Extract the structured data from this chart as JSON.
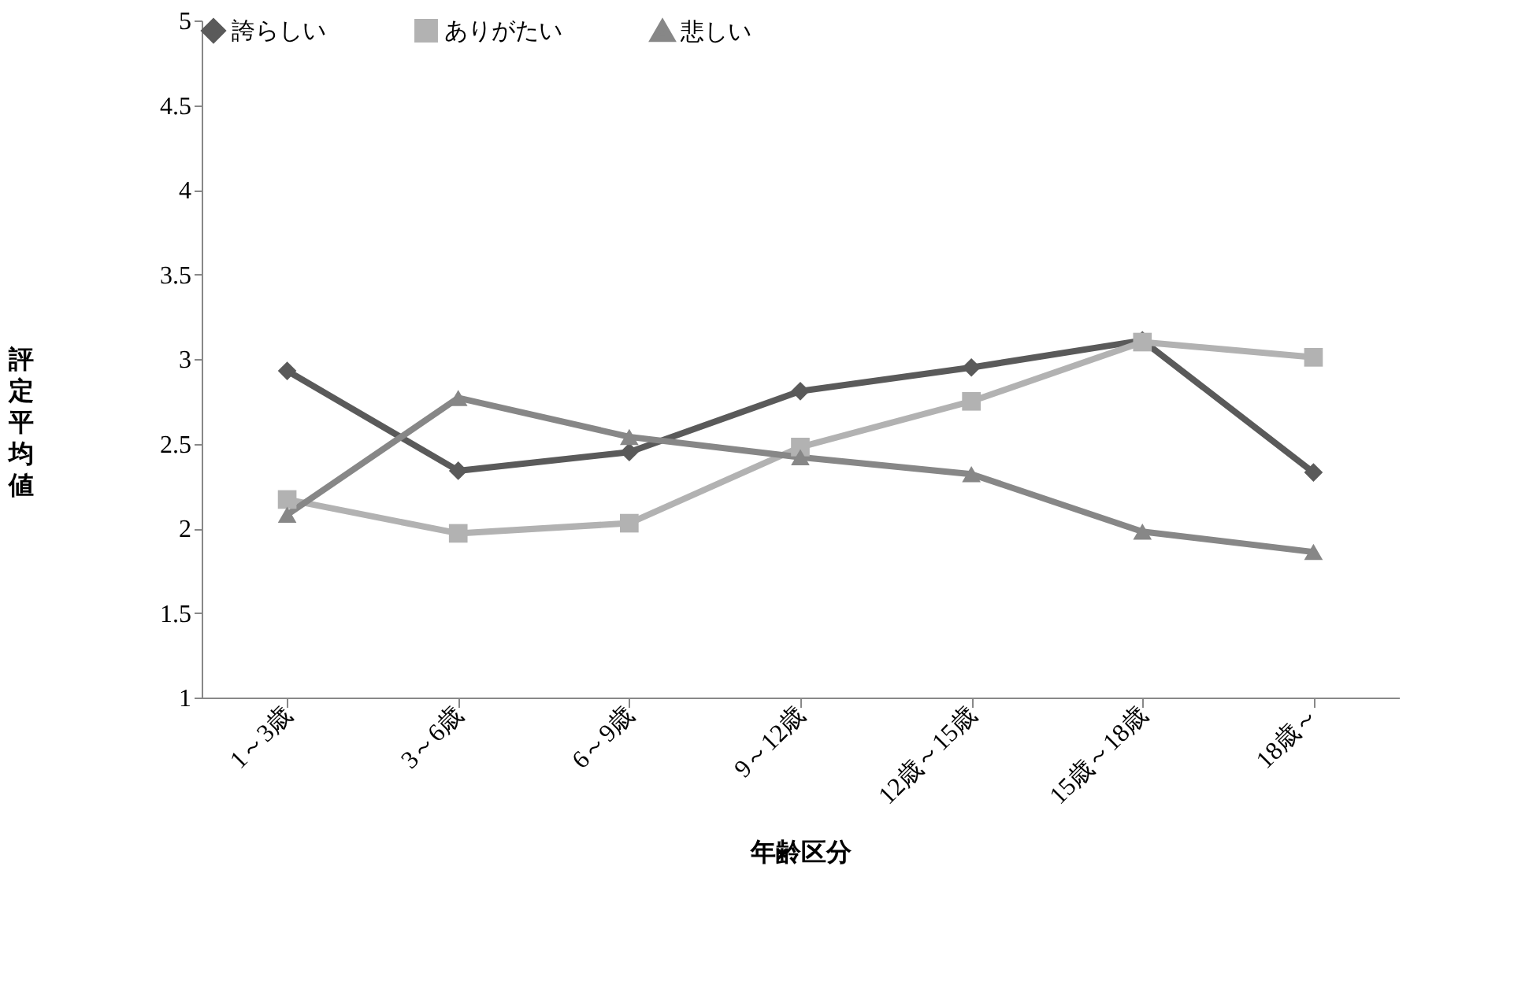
{
  "chart_data": {
    "type": "line",
    "xlabel": "年齢区分",
    "ylabel": "評定平均値",
    "categories": [
      "1～3歳",
      "3～6歳",
      "6～9歳",
      "9～12歳",
      "12歳～15歳",
      "15歳～18歳",
      "18歳～"
    ],
    "series": [
      {
        "name": "誇らしい",
        "color": "#5a5a5a",
        "marker": "diamond",
        "values": [
          2.93,
          2.34,
          2.45,
          2.81,
          2.95,
          3.11,
          2.33
        ]
      },
      {
        "name": "ありがたい",
        "color": "#b2b2b2",
        "marker": "square",
        "values": [
          2.17,
          1.97,
          2.03,
          2.48,
          2.75,
          3.1,
          3.01
        ]
      },
      {
        "name": "悲しい",
        "color": "#878787",
        "marker": "triangle",
        "values": [
          2.08,
          2.77,
          2.54,
          2.42,
          2.32,
          1.98,
          1.86
        ]
      }
    ],
    "ylim": [
      1,
      5
    ],
    "yticks": [
      1,
      1.5,
      2,
      2.5,
      3,
      3.5,
      4,
      4.5,
      5
    ],
    "grid": false,
    "legend": "top",
    "line_style": "solid"
  }
}
